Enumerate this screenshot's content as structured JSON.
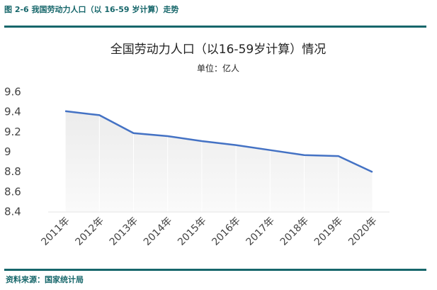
{
  "header": {
    "title": "图 2-6 我国劳动力人口（以 16-59 岁计算）走势"
  },
  "chart_data": {
    "type": "line",
    "title": "全国劳动力人口（以16-59岁计算）情况",
    "subtitle": "单位：亿人",
    "categories": [
      "2011年",
      "2012年",
      "2013年",
      "2014年",
      "2015年",
      "2016年",
      "2017年",
      "2018年",
      "2019年",
      "2020年"
    ],
    "values": [
      9.41,
      9.37,
      9.19,
      9.16,
      9.11,
      9.07,
      9.02,
      8.97,
      8.96,
      8.8
    ],
    "color": "#4472c4",
    "ylim": [
      8.4,
      9.6
    ],
    "yticks": [
      8.4,
      8.6,
      8.8,
      9,
      9.2,
      9.4,
      9.6
    ],
    "drop_lines": true
  },
  "footer": {
    "source": "资料来源：国家统计局"
  }
}
